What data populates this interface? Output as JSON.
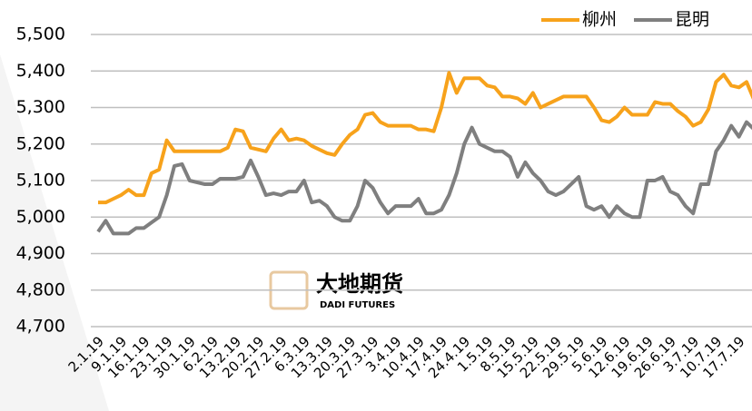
{
  "chart_data": {
    "type": "line",
    "categories": [
      "2.1.19",
      null,
      null,
      "9.1.19",
      null,
      null,
      "16.1.19",
      null,
      null,
      "23.1.19",
      null,
      null,
      "30.1.19",
      null,
      null,
      "6.2.19",
      null,
      null,
      "13.2.19",
      null,
      null,
      "20.2.19",
      null,
      null,
      "27.2.19",
      null,
      null,
      "6.3.19",
      null,
      null,
      "13.3.19",
      null,
      null,
      "20.3.19",
      null,
      null,
      "27.3.19",
      null,
      null,
      "3.4.19",
      null,
      null,
      "10.4.19",
      null,
      null,
      "17.4.19",
      null,
      null,
      "24.4.19",
      null,
      null,
      "1.5.19",
      null,
      null,
      "8.5.19",
      null,
      null,
      "15.5.19",
      null,
      null,
      "22.5.19",
      null,
      null,
      "29.5.19",
      null,
      null,
      "5.6.19",
      null,
      null,
      "12.6.19",
      null,
      null,
      "19.6.19",
      null,
      null,
      "26.6.19",
      null,
      null,
      "3.7.19",
      null,
      null,
      "10.7.19",
      null,
      null,
      "17.7.19",
      null,
      null
    ],
    "series": [
      {
        "name": "柳州",
        "color": "#f7a21b",
        "values": [
          5040,
          5040,
          5050,
          5060,
          5075,
          5060,
          5060,
          5120,
          5130,
          5210,
          5180,
          5180,
          5180,
          5180,
          5180,
          5180,
          5180,
          5190,
          5240,
          5235,
          5190,
          5185,
          5180,
          5215,
          5240,
          5210,
          5215,
          5210,
          5195,
          5185,
          5175,
          5170,
          5200,
          5225,
          5240,
          5280,
          5285,
          5260,
          5250,
          5250,
          5250,
          5250,
          5240,
          5240,
          5235,
          5300,
          5395,
          5340,
          5380,
          5380,
          5380,
          5360,
          5355,
          5330,
          5330,
          5325,
          5310,
          5340,
          5300,
          5310,
          5320,
          5330,
          5330,
          5330,
          5330,
          5300,
          5265,
          5260,
          5275,
          5300,
          5280,
          5280,
          5280,
          5315,
          5310,
          5310,
          5290,
          5275,
          5250,
          5260,
          5295,
          5370,
          5390,
          5360,
          5355,
          5370,
          5320
        ]
      },
      {
        "name": "昆明",
        "color": "#7f7f7f",
        "values": [
          4960,
          4990,
          4955,
          4955,
          4955,
          4970,
          4970,
          4985,
          5000,
          5060,
          5140,
          5145,
          5100,
          5095,
          5090,
          5090,
          5105,
          5105,
          5105,
          5110,
          5155,
          5110,
          5060,
          5065,
          5060,
          5070,
          5070,
          5100,
          5040,
          5045,
          5030,
          5000,
          4990,
          4990,
          5030,
          5100,
          5080,
          5040,
          5010,
          5030,
          5030,
          5030,
          5050,
          5010,
          5010,
          5020,
          5060,
          5120,
          5200,
          5245,
          5200,
          5190,
          5180,
          5180,
          5165,
          5110,
          5150,
          5120,
          5100,
          5070,
          5060,
          5070,
          5090,
          5110,
          5030,
          5020,
          5030,
          5000,
          5030,
          5010,
          5000,
          5000,
          5100,
          5100,
          5110,
          5070,
          5060,
          5030,
          5010,
          5090,
          5090,
          5180,
          5210,
          5250,
          5220,
          5260,
          5240
        ]
      }
    ],
    "ylim": [
      4700,
      5500
    ],
    "yticks": [
      {
        "value": 4700,
        "label": "4,700"
      },
      {
        "value": 4800,
        "label": "4,800"
      },
      {
        "value": 4900,
        "label": "4,900"
      },
      {
        "value": 5000,
        "label": "5,000"
      },
      {
        "value": 5100,
        "label": "5,100"
      },
      {
        "value": 5200,
        "label": "5,200"
      },
      {
        "value": 5300,
        "label": "5,300"
      },
      {
        "value": 5400,
        "label": "5,400"
      },
      {
        "value": 5500,
        "label": "5,500"
      }
    ],
    "grid": true,
    "legend": "top-right",
    "watermark": {
      "name": "大地期货",
      "sub": "DADI FUTURES"
    }
  }
}
